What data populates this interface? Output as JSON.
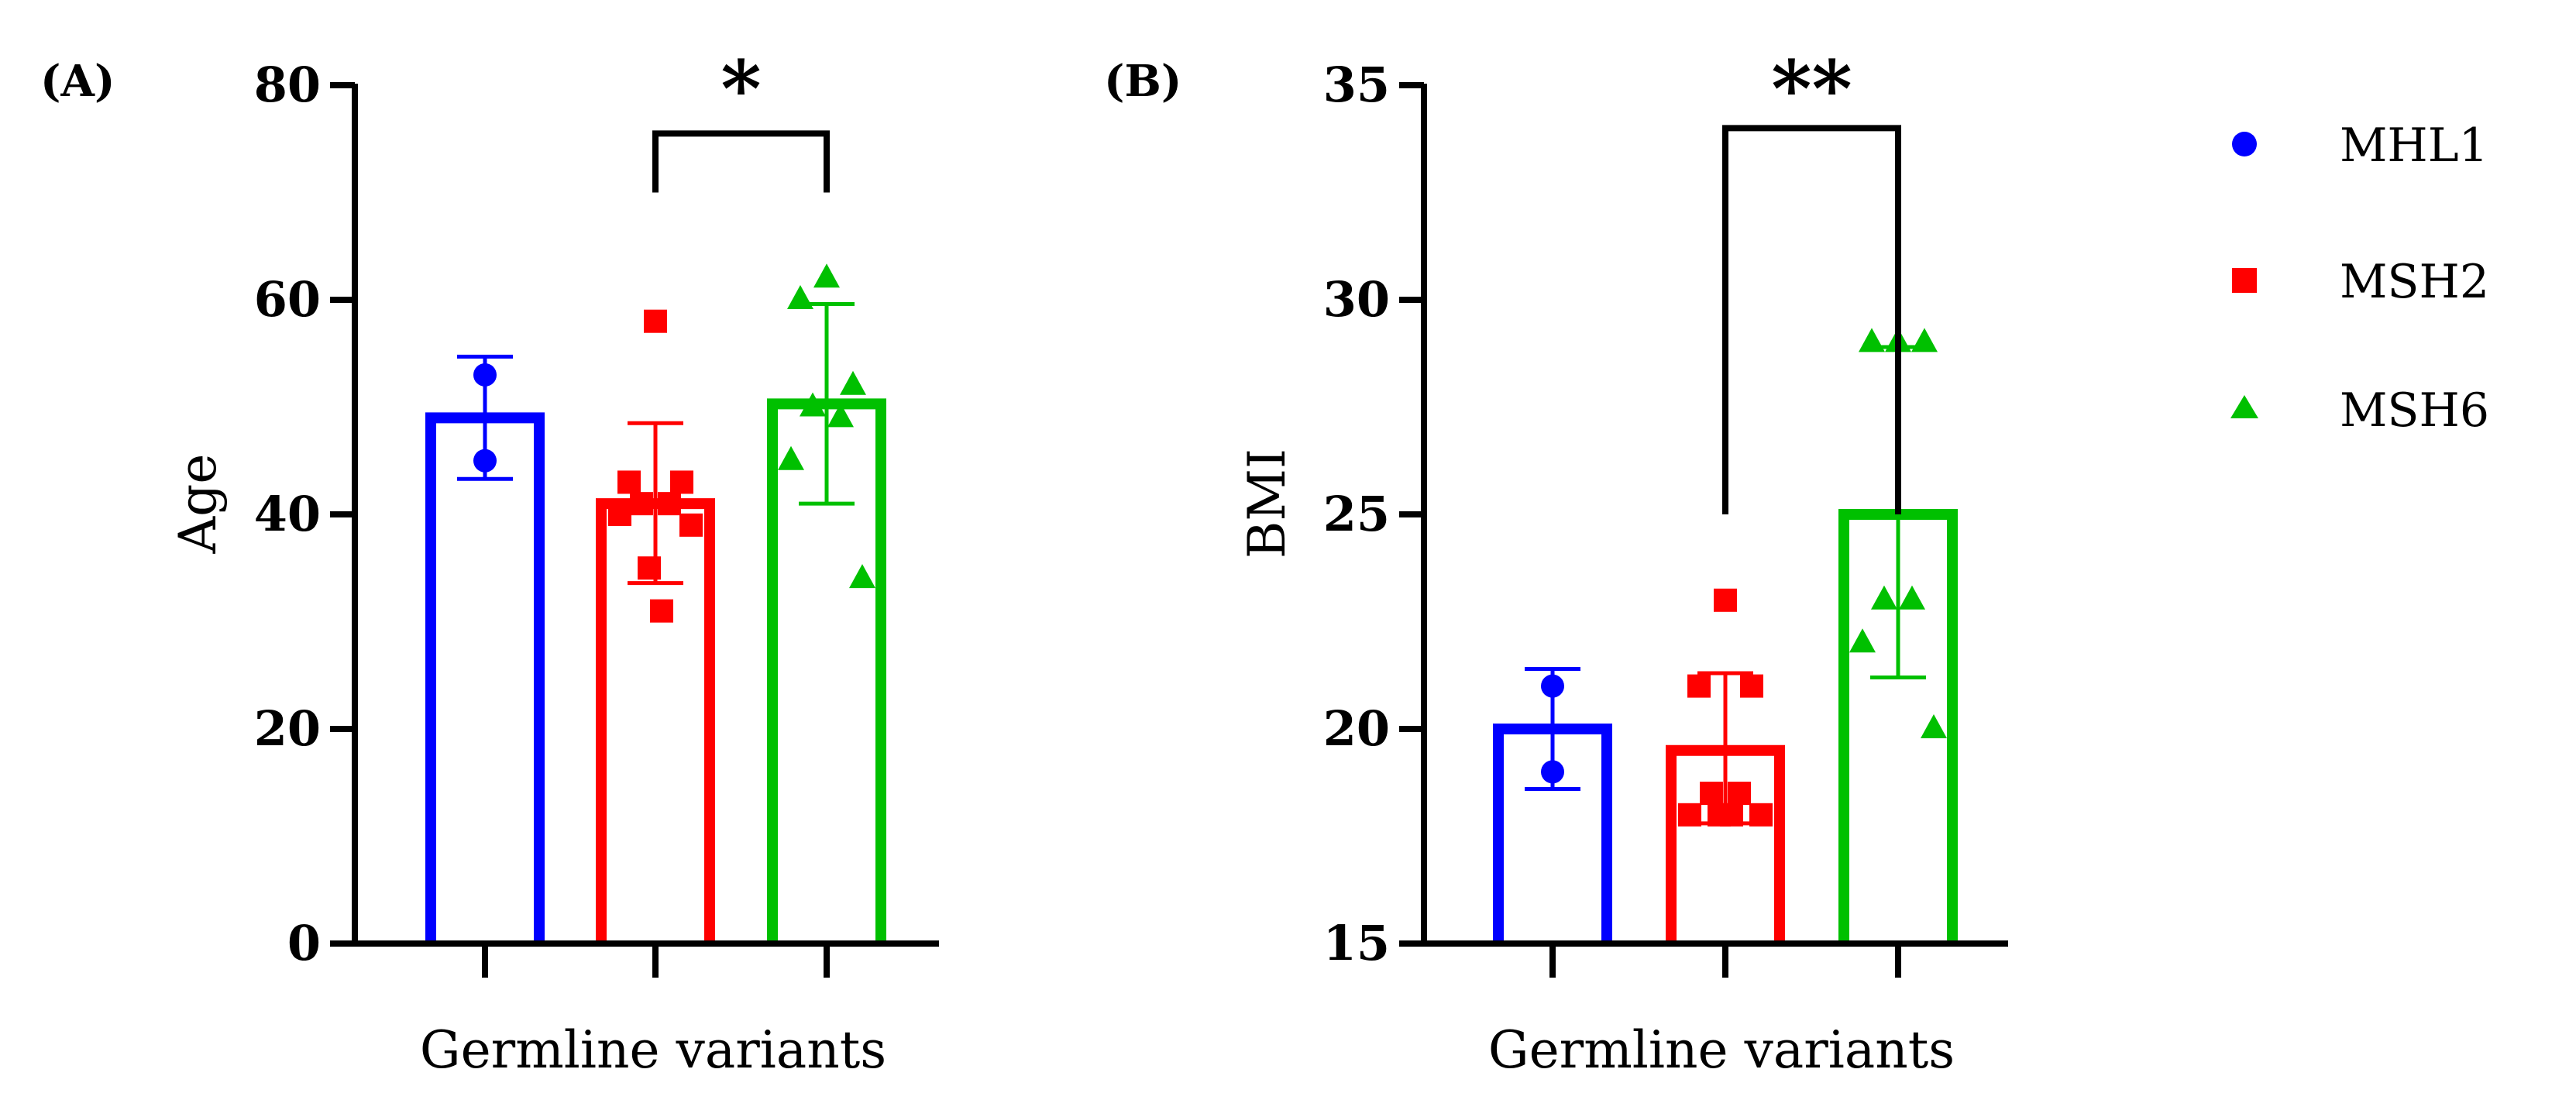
{
  "chart_data": [
    {
      "panel_label": "(A)",
      "type": "bar",
      "xlabel": "Germline variants",
      "ylabel": "Age",
      "ylim": [
        0,
        80
      ],
      "yticks": [
        0,
        20,
        40,
        60,
        80
      ],
      "series": [
        {
          "name": "MHL1",
          "mean": 49,
          "sd_low": 43.3,
          "sd_high": 54.7,
          "points": [
            53,
            45
          ]
        },
        {
          "name": "MSH2",
          "mean": 41,
          "sd_low": 33.6,
          "sd_high": 48.5,
          "points": [
            58,
            43,
            43,
            41,
            41,
            40,
            39,
            35,
            31
          ]
        },
        {
          "name": "MSH6",
          "mean": 50.3,
          "sd_low": 41,
          "sd_high": 59.6,
          "points": [
            62,
            60,
            52,
            50,
            49,
            45,
            34
          ]
        }
      ],
      "significance": {
        "from": "MSH2",
        "to": "MSH6",
        "label": "*",
        "y_top": 75.5,
        "y_bottom": 70
      }
    },
    {
      "panel_label": "(B)",
      "type": "bar",
      "xlabel": "Germline variants",
      "ylabel": "BMI",
      "ylim": [
        15,
        35
      ],
      "yticks": [
        15,
        20,
        25,
        30,
        35
      ],
      "series": [
        {
          "name": "MHL1",
          "mean": 20,
          "sd_low": 18.6,
          "sd_high": 21.4,
          "points": [
            21,
            19
          ]
        },
        {
          "name": "MSH2",
          "mean": 19.5,
          "sd_low": 17.8,
          "sd_high": 21.3,
          "points": [
            23,
            21,
            21,
            18.5,
            18.5,
            18,
            18,
            18,
            18
          ]
        },
        {
          "name": "MSH6",
          "mean": 25,
          "sd_low": 21.2,
          "sd_high": 28.9,
          "points": [
            29,
            29,
            29,
            23,
            23,
            22,
            20
          ]
        }
      ],
      "significance": {
        "from": "MSH2",
        "to": "MSH6",
        "label": "**",
        "y_top": 34,
        "y_bottom": 25
      }
    }
  ],
  "legend": [
    {
      "label": "MHL1",
      "marker": "circle"
    },
    {
      "label": "MSH2",
      "marker": "square"
    },
    {
      "label": "MSH6",
      "marker": "triangle"
    }
  ],
  "colors": {
    "MHL1": "#0000ff",
    "MSH2": "#ff0000",
    "MSH6": "#00c000"
  }
}
